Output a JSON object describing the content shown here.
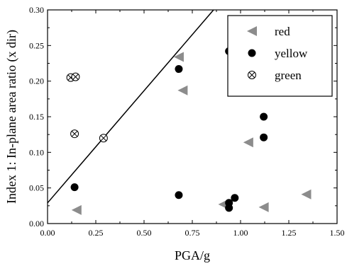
{
  "chart_data": {
    "type": "scatter",
    "xlabel": "PGA/g",
    "ylabel": "Index 1: In-plane area ratio (x dir)",
    "xlim": [
      0.0,
      1.5
    ],
    "ylim": [
      0.0,
      0.3
    ],
    "x_ticks": [
      "0.00",
      "0.25",
      "0.50",
      "0.75",
      "1.00",
      "1.25",
      "1.50"
    ],
    "y_ticks": [
      "0.00",
      "0.05",
      "0.10",
      "0.15",
      "0.20",
      "0.25",
      "0.30"
    ],
    "legend_position": "top-right",
    "series": [
      {
        "name": "red",
        "marker": "triangle-left",
        "color": "#8c8c8c",
        "points": [
          [
            0.15,
            0.019
          ],
          [
            0.68,
            0.234
          ],
          [
            0.7,
            0.187
          ],
          [
            0.91,
            0.027
          ],
          [
            1.04,
            0.114
          ],
          [
            1.12,
            0.023
          ],
          [
            1.34,
            0.041
          ]
        ]
      },
      {
        "name": "yellow",
        "marker": "filled-circle",
        "color": "#000000",
        "points": [
          [
            0.14,
            0.051
          ],
          [
            0.68,
            0.217
          ],
          [
            0.68,
            0.04
          ],
          [
            0.94,
            0.242
          ],
          [
            0.94,
            0.029
          ],
          [
            0.94,
            0.022
          ],
          [
            0.97,
            0.036
          ],
          [
            1.12,
            0.15
          ],
          [
            1.12,
            0.121
          ]
        ]
      },
      {
        "name": "green",
        "marker": "circle-x",
        "color": "#000000",
        "points": [
          [
            0.12,
            0.205
          ],
          [
            0.145,
            0.206
          ],
          [
            0.14,
            0.126
          ],
          [
            0.29,
            0.12
          ]
        ]
      }
    ],
    "trend_line": {
      "x": [
        0.0,
        0.86
      ],
      "y": [
        0.029,
        0.3
      ]
    }
  }
}
